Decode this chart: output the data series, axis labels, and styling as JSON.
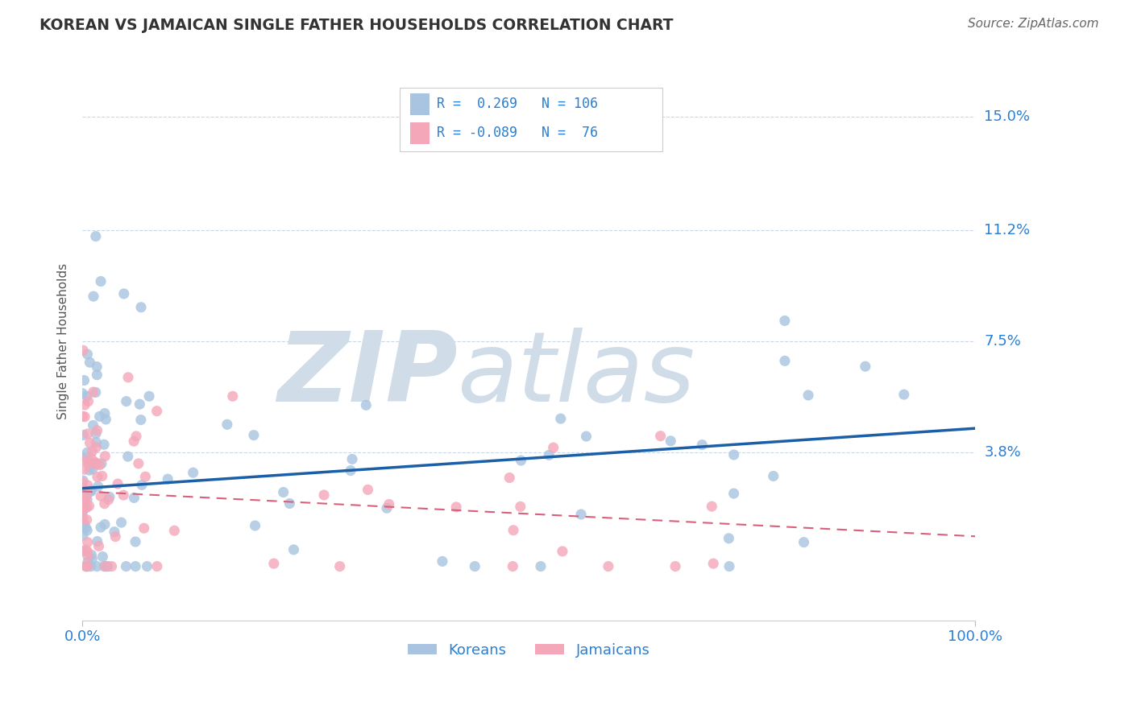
{
  "title": "KOREAN VS JAMAICAN SINGLE FATHER HOUSEHOLDS CORRELATION CHART",
  "source": "Source: ZipAtlas.com",
  "ylabel": "Single Father Households",
  "xlabel": "",
  "xlim": [
    0.0,
    1.0
  ],
  "ylim": [
    -0.018,
    0.168
  ],
  "ytick_vals": [
    0.038,
    0.075,
    0.112,
    0.15
  ],
  "ytick_labels": [
    "3.8%",
    "7.5%",
    "11.2%",
    "15.0%"
  ],
  "xtick_vals": [
    0.0,
    1.0
  ],
  "xtick_labels": [
    "0.0%",
    "100.0%"
  ],
  "korean_R": 0.269,
  "korean_N": 106,
  "jamaican_R": -0.089,
  "jamaican_N": 76,
  "korean_color": "#a8c4e0",
  "jamaican_color": "#f4a7b9",
  "korean_line_color": "#1a5fa8",
  "jamaican_line_color": "#d9607a",
  "watermark_zip": "ZIP",
  "watermark_atlas": "atlas",
  "watermark_color": "#d0dde8",
  "grid_color": "#c8d8e8",
  "background_color": "#ffffff",
  "title_color": "#333333",
  "axis_label_color": "#2a7fd4",
  "source_color": "#666666",
  "ylabel_color": "#555555",
  "legend_box_korean_color": "#a8c4e0",
  "legend_box_jamaican_color": "#f4a7b9",
  "legend_border_color": "#cccccc",
  "korean_line_start_y": 0.026,
  "korean_line_end_y": 0.046,
  "jamaican_line_start_y": 0.025,
  "jamaican_line_end_y": 0.01
}
